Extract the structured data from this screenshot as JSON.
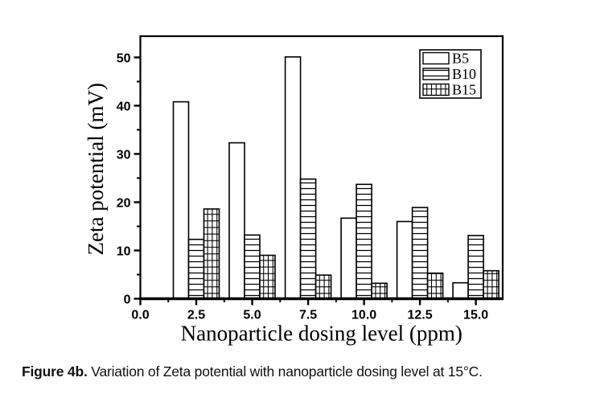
{
  "caption": {
    "label": "Figure 4b.",
    "text": " Variation of Zeta potential with nanoparticle dosing level at 15°C."
  },
  "colors": {
    "axis": "#000000",
    "bar_fill": "#ffffff",
    "bar_stroke": "#000000",
    "background": "#ffffff",
    "text": "#000000"
  },
  "legend": {
    "position": "top-right",
    "entries": [
      {
        "label": "B5",
        "hatch": "none"
      },
      {
        "label": "B10",
        "hatch": "horizontal"
      },
      {
        "label": "B15",
        "hatch": "grid"
      }
    ]
  },
  "chart_data": {
    "type": "bar",
    "title": "",
    "xlabel": "Nanoparticle dosing level (ppm)",
    "ylabel": "Zeta potential (mV)",
    "categories": [
      2.5,
      5.0,
      7.5,
      10.0,
      12.5,
      15.0
    ],
    "series": [
      {
        "name": "B5",
        "hatch": "none",
        "values": [
          40.8,
          32.3,
          50.1,
          16.7,
          16.0,
          3.3
        ]
      },
      {
        "name": "B10",
        "hatch": "horizontal",
        "values": [
          12.3,
          13.2,
          24.8,
          23.7,
          18.9,
          13.1
        ]
      },
      {
        "name": "B15",
        "hatch": "grid",
        "values": [
          18.6,
          9.0,
          4.9,
          3.2,
          5.3,
          5.8
        ]
      }
    ],
    "xlim": [
      0,
      16.2
    ],
    "ylim": [
      0,
      54.4
    ],
    "x_tick_labels": [
      "0.0",
      "2.5",
      "5.0",
      "7.5",
      "10.0",
      "12.5",
      "15.0"
    ],
    "x_tick_values": [
      0,
      2.5,
      5.0,
      7.5,
      10.0,
      12.5,
      15.0
    ],
    "y_tick_labels": [
      "0",
      "10",
      "20",
      "30",
      "40",
      "50"
    ],
    "y_tick_values": [
      0,
      10,
      20,
      30,
      40,
      50
    ],
    "x_minor_tick_values": [
      1.25,
      3.75,
      6.25,
      8.75,
      11.25,
      13.75
    ],
    "y_minor_tick_values": [
      5,
      15,
      25,
      35,
      45
    ],
    "grid": false,
    "legend_position": "top-right"
  }
}
